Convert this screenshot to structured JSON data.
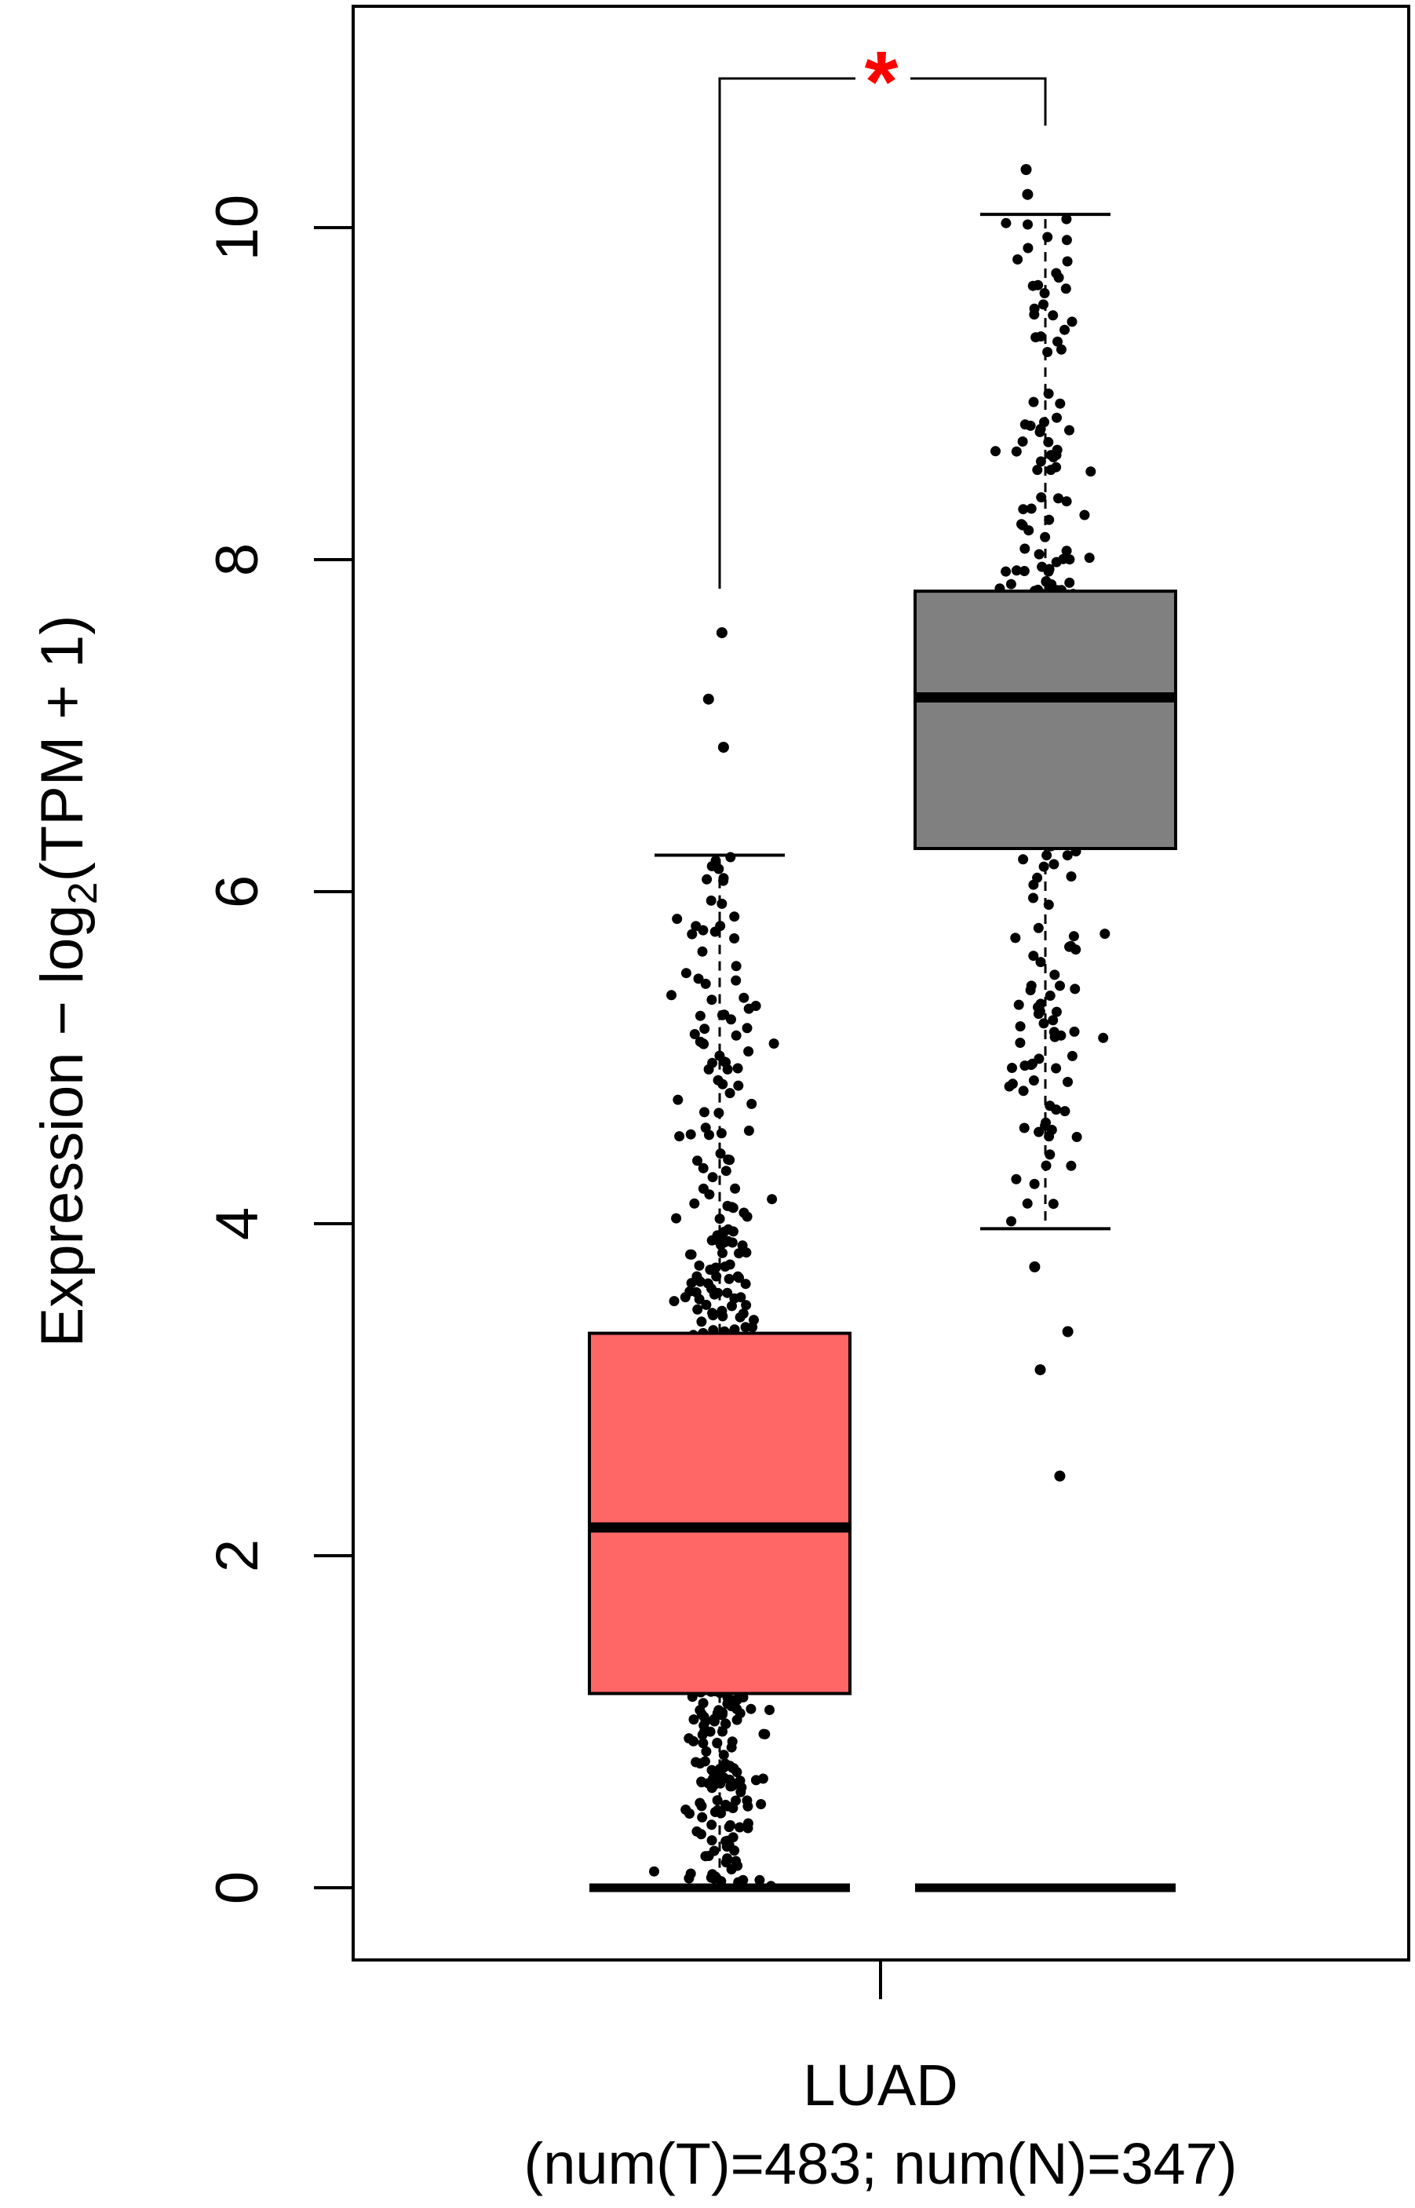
{
  "chart_data": {
    "type": "box",
    "title": "",
    "ylabel_parts": {
      "main": "Expression − log",
      "sub": "2",
      "tail": "(TPM + 1)"
    },
    "ylim": [
      -0.45,
      11.3
    ],
    "yticks": [
      0,
      2,
      4,
      6,
      8,
      10
    ],
    "group_label": "LUAD",
    "group_sublabel": "(num(T)=483; num(N)=347)",
    "significance_marker": "*",
    "groups": [
      {
        "name": "T",
        "count": 483,
        "color": "#ff6666",
        "whisker_low": 0.0,
        "q1": 1.17,
        "median": 2.17,
        "q3": 3.34,
        "whisker_high": 6.22,
        "outliers": [
          6.87,
          7.16,
          7.56
        ]
      },
      {
        "name": "N",
        "count": 347,
        "color": "#808080",
        "whisker_low": 3.97,
        "q1": 6.26,
        "median": 7.17,
        "q3": 7.81,
        "whisker_high": 10.08,
        "outliers": [
          3.74,
          3.35,
          3.12,
          2.48,
          10.2,
          10.35
        ]
      }
    ],
    "colors": {
      "significance": "#ff0000",
      "axis": "#000000",
      "points": "#000000"
    }
  }
}
